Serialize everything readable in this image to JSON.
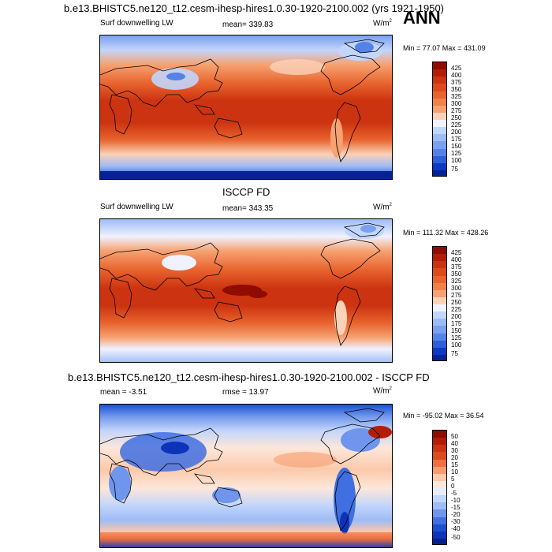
{
  "header": {
    "title": "b.e13.BHISTC5.ne120_t12.cesm-ihesp-hires1.0.30-1920-2100.002 (yrs 1921-1950)",
    "season": "ANN"
  },
  "panels": [
    {
      "id": "model",
      "section_title": "",
      "left_label": "Surf downwelling LW",
      "stat_label": "mean= 339.83",
      "units": "W/m",
      "units_sup": "2",
      "minmax": "Min =  77.07 Max = 431.09",
      "colorbar_labels": [
        "425",
        "400",
        "375",
        "350",
        "325",
        "300",
        "275",
        "250",
        "225",
        "200",
        "175",
        "150",
        "125",
        "100",
        "75"
      ]
    },
    {
      "id": "obs",
      "section_title": "ISCCP FD",
      "left_label": "Surf downwelling LW",
      "stat_label": "mean= 343.35",
      "units": "W/m",
      "units_sup": "2",
      "minmax": "Min = 111.32 Max = 428.26",
      "colorbar_labels": [
        "425",
        "400",
        "375",
        "350",
        "325",
        "300",
        "275",
        "250",
        "225",
        "200",
        "175",
        "150",
        "125",
        "100",
        "75"
      ]
    },
    {
      "id": "diff",
      "section_title": "b.e13.BHISTC5.ne120_t12.cesm-ihesp-hires1.0.30-1920-2100.002 - ISCCP FD",
      "left_label": "mean =  -3.51",
      "stat_label": "rmse =  13.97",
      "units": "W/m",
      "units_sup": "2",
      "minmax": "Min = -95.02 Max =  36.54",
      "colorbar_labels": [
        "50",
        "40",
        "30",
        "20",
        "15",
        "10",
        "5",
        "0",
        "-5",
        "-10",
        "-15",
        "-20",
        "-30",
        "-40",
        "-50"
      ]
    }
  ],
  "colors": {
    "abs_scale": [
      "#8e0c00",
      "#b31d06",
      "#cc3310",
      "#dd4a1d",
      "#e8642e",
      "#f18147",
      "#f6a272",
      "#fbd2b8",
      "#f0f2ff",
      "#c2d5fb",
      "#9dbcf6",
      "#7aa0ef",
      "#5582e6",
      "#2e5fd9",
      "#0d3ac4",
      "#072297"
    ],
    "diff_scale": [
      "#8e0c00",
      "#b31d06",
      "#cc3310",
      "#dd4a1d",
      "#ee7040",
      "#f69c70",
      "#fbc9ab",
      "#fde7da",
      "#e6edfd",
      "#c2d5fb",
      "#9dbcf6",
      "#6f96ec",
      "#3f6fe0",
      "#1a4fd0",
      "#0d34b8",
      "#061f90"
    ]
  }
}
